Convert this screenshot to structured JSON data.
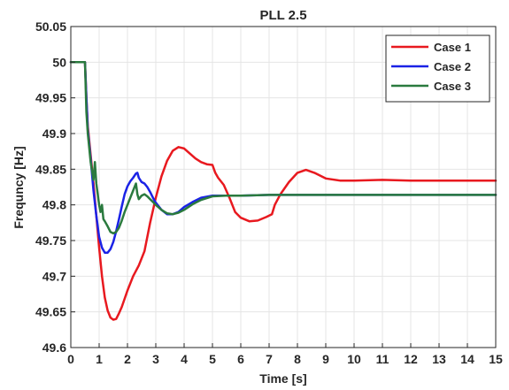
{
  "chart_data": {
    "type": "line",
    "title": "PLL 2.5",
    "xlabel": "Time [s]",
    "ylabel": "Frequncy [Hz]",
    "xlim": [
      0,
      15
    ],
    "ylim": [
      49.6,
      50.05
    ],
    "xticks": [
      0,
      1,
      2,
      3,
      4,
      5,
      6,
      7,
      8,
      9,
      10,
      11,
      12,
      13,
      14,
      15
    ],
    "xtick_labels": [
      "0",
      "1",
      "2",
      "3",
      "4",
      "5",
      "6",
      "7",
      "8",
      "9",
      "10",
      "11",
      "12",
      "13",
      "14",
      "15"
    ],
    "yticks": [
      49.6,
      49.65,
      49.7,
      49.75,
      49.8,
      49.85,
      49.9,
      49.95,
      50,
      50.05
    ],
    "ytick_labels": [
      "49.6",
      "49.65",
      "49.7",
      "49.75",
      "49.8",
      "49.85",
      "49.9",
      "49.95",
      "50",
      "50.05"
    ],
    "grid": true,
    "legend_position": "top-right",
    "series": [
      {
        "name": "Case 1",
        "color": "#e8191f",
        "x": [
          0,
          0.5,
          0.55,
          0.6,
          0.7,
          0.8,
          0.9,
          1.0,
          1.1,
          1.2,
          1.3,
          1.4,
          1.5,
          1.6,
          1.7,
          1.8,
          2.0,
          2.2,
          2.4,
          2.6,
          2.8,
          3.0,
          3.2,
          3.4,
          3.6,
          3.8,
          4.0,
          4.2,
          4.4,
          4.6,
          4.8,
          5.0,
          5.1,
          5.2,
          5.4,
          5.6,
          5.8,
          6.0,
          6.3,
          6.6,
          6.9,
          7.1,
          7.2,
          7.4,
          7.7,
          8.0,
          8.3,
          8.6,
          9.0,
          9.5,
          10.0,
          11.0,
          12.0,
          13.0,
          14.0,
          15.0
        ],
        "y": [
          50.0,
          50.0,
          49.95,
          49.91,
          49.87,
          49.83,
          49.785,
          49.74,
          49.7,
          49.67,
          49.652,
          49.642,
          49.639,
          49.64,
          49.648,
          49.657,
          49.68,
          49.7,
          49.715,
          49.735,
          49.775,
          49.81,
          49.84,
          49.862,
          49.876,
          49.881,
          49.879,
          49.872,
          49.865,
          49.86,
          49.857,
          49.856,
          49.845,
          49.838,
          49.828,
          49.81,
          49.79,
          49.782,
          49.777,
          49.778,
          49.783,
          49.787,
          49.8,
          49.815,
          49.832,
          49.845,
          49.849,
          49.845,
          49.837,
          49.834,
          49.834,
          49.835,
          49.834,
          49.834,
          49.834,
          49.834
        ]
      },
      {
        "name": "Case 2",
        "color": "#1a22e6",
        "x": [
          0,
          0.5,
          0.55,
          0.6,
          0.7,
          0.8,
          0.9,
          1.0,
          1.1,
          1.2,
          1.3,
          1.4,
          1.5,
          1.6,
          1.7,
          1.8,
          1.9,
          2.0,
          2.1,
          2.2,
          2.3,
          2.35,
          2.4,
          2.5,
          2.6,
          2.7,
          2.8,
          2.9,
          3.0,
          3.2,
          3.4,
          3.6,
          3.8,
          4.0,
          4.3,
          4.6,
          5.0,
          5.5,
          6.0,
          7.0,
          8.0,
          9.0,
          10.0,
          11.0,
          12.0,
          13.0,
          14.0,
          15.0
        ],
        "y": [
          50.0,
          50.0,
          49.95,
          49.905,
          49.865,
          49.82,
          49.785,
          49.755,
          49.74,
          49.733,
          49.733,
          49.738,
          49.748,
          49.763,
          49.78,
          49.798,
          49.815,
          49.826,
          49.833,
          49.838,
          49.844,
          49.845,
          49.838,
          49.832,
          49.83,
          49.825,
          49.818,
          49.81,
          49.803,
          49.793,
          49.787,
          49.787,
          49.79,
          49.797,
          49.804,
          49.81,
          49.813,
          49.813,
          49.813,
          49.814,
          49.814,
          49.814,
          49.814,
          49.814,
          49.814,
          49.814,
          49.814,
          49.814
        ]
      },
      {
        "name": "Case 3",
        "color": "#2a7a3e",
        "x": [
          0,
          0.5,
          0.55,
          0.6,
          0.7,
          0.8,
          0.85,
          0.9,
          1.0,
          1.05,
          1.1,
          1.15,
          1.2,
          1.3,
          1.4,
          1.5,
          1.6,
          1.7,
          1.8,
          1.9,
          2.0,
          2.1,
          2.2,
          2.3,
          2.35,
          2.4,
          2.5,
          2.6,
          2.7,
          2.8,
          2.9,
          3.0,
          3.2,
          3.4,
          3.6,
          3.8,
          4.0,
          4.3,
          4.6,
          5.0,
          5.5,
          6.0,
          7.0,
          8.0,
          9.0,
          10.0,
          11.0,
          12.0,
          13.0,
          14.0,
          15.0
        ],
        "y": [
          50.0,
          50.0,
          49.93,
          49.9,
          49.86,
          49.835,
          49.86,
          49.83,
          49.8,
          49.79,
          49.8,
          49.78,
          49.777,
          49.77,
          49.762,
          49.76,
          49.762,
          49.768,
          49.778,
          49.79,
          49.8,
          49.81,
          49.82,
          49.83,
          49.815,
          49.808,
          49.813,
          49.815,
          49.812,
          49.808,
          49.804,
          49.8,
          49.793,
          49.788,
          49.787,
          49.789,
          49.793,
          49.801,
          49.807,
          49.812,
          49.813,
          49.813,
          49.814,
          49.814,
          49.814,
          49.814,
          49.814,
          49.814,
          49.814,
          49.814,
          49.814
        ]
      }
    ]
  }
}
